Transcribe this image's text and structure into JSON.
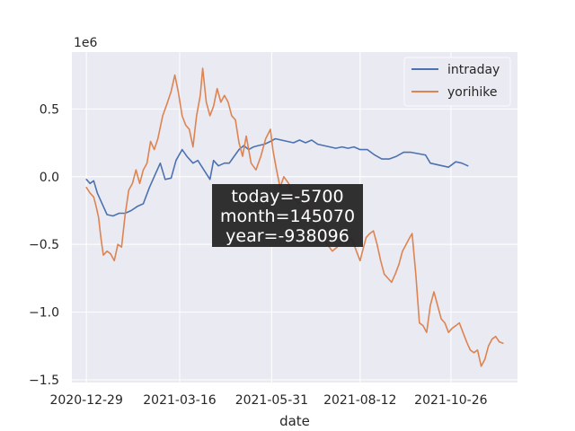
{
  "chart_data": {
    "type": "line",
    "xlabel": "date",
    "ylabel": "",
    "offset_label": "1e6",
    "x_tick_labels": [
      "2020-12-29",
      "2021-03-16",
      "2021-05-31",
      "2021-08-12",
      "2021-10-26"
    ],
    "x_tick_values": [
      "2020-12-29",
      "2021-03-16",
      "2021-05-31",
      "2021-08-12",
      "2021-10-26"
    ],
    "xlim": [
      "2020-12-17",
      "2021-12-20"
    ],
    "y_tick_labels": [
      "0.5",
      "0.0",
      "−0.5",
      "−1.0",
      "−1.5"
    ],
    "y_tick_values": [
      0.5,
      0.0,
      -0.5,
      -1.0,
      -1.5
    ],
    "ylim": [
      -1.52,
      0.92
    ],
    "y_unit_multiplier": 1000000,
    "grid": true,
    "legend_position": "top-right",
    "colors": {
      "background": "#eaeaf2",
      "grid": "#ffffff",
      "intraday": "#4c72b0",
      "yorihike": "#dd8452",
      "annotation_box": "#262626"
    },
    "annotation": [
      "today=-5700",
      "month=145070",
      "year=-938096"
    ],
    "series": [
      {
        "name": "intraday",
        "points": [
          [
            "2020-12-29",
            -0.02
          ],
          [
            "2021-01-01",
            -0.05
          ],
          [
            "2021-01-04",
            -0.03
          ],
          [
            "2021-01-07",
            -0.12
          ],
          [
            "2021-01-11",
            -0.2
          ],
          [
            "2021-01-15",
            -0.28
          ],
          [
            "2021-01-20",
            -0.29
          ],
          [
            "2021-01-25",
            -0.27
          ],
          [
            "2021-01-30",
            -0.27
          ],
          [
            "2021-02-04",
            -0.25
          ],
          [
            "2021-02-09",
            -0.22
          ],
          [
            "2021-02-14",
            -0.2
          ],
          [
            "2021-02-19",
            -0.08
          ],
          [
            "2021-02-24",
            0.02
          ],
          [
            "2021-02-28",
            0.1
          ],
          [
            "2021-03-04",
            -0.02
          ],
          [
            "2021-03-09",
            -0.01
          ],
          [
            "2021-03-13",
            0.12
          ],
          [
            "2021-03-18",
            0.2
          ],
          [
            "2021-03-22",
            0.15
          ],
          [
            "2021-03-27",
            0.1
          ],
          [
            "2021-03-31",
            0.12
          ],
          [
            "2021-04-05",
            0.05
          ],
          [
            "2021-04-10",
            -0.02
          ],
          [
            "2021-04-13",
            0.12
          ],
          [
            "2021-04-17",
            0.08
          ],
          [
            "2021-04-22",
            0.1
          ],
          [
            "2021-04-26",
            0.1
          ],
          [
            "2021-04-30",
            0.15
          ],
          [
            "2021-05-04",
            0.2
          ],
          [
            "2021-05-08",
            0.23
          ],
          [
            "2021-05-12",
            0.2
          ],
          [
            "2021-05-16",
            0.22
          ],
          [
            "2021-05-20",
            0.23
          ],
          [
            "2021-05-25",
            0.24
          ],
          [
            "2021-05-30",
            0.26
          ],
          [
            "2021-06-03",
            0.28
          ],
          [
            "2021-06-08",
            0.27
          ],
          [
            "2021-06-13",
            0.26
          ],
          [
            "2021-06-18",
            0.25
          ],
          [
            "2021-06-23",
            0.27
          ],
          [
            "2021-06-28",
            0.25
          ],
          [
            "2021-07-03",
            0.27
          ],
          [
            "2021-07-08",
            0.24
          ],
          [
            "2021-07-13",
            0.23
          ],
          [
            "2021-07-18",
            0.22
          ],
          [
            "2021-07-23",
            0.21
          ],
          [
            "2021-07-28",
            0.22
          ],
          [
            "2021-08-02",
            0.21
          ],
          [
            "2021-08-07",
            0.22
          ],
          [
            "2021-08-12",
            0.2
          ],
          [
            "2021-08-18",
            0.2
          ],
          [
            "2021-08-24",
            0.16
          ],
          [
            "2021-08-30",
            0.13
          ],
          [
            "2021-09-05",
            0.13
          ],
          [
            "2021-09-11",
            0.15
          ],
          [
            "2021-09-17",
            0.18
          ],
          [
            "2021-09-23",
            0.18
          ],
          [
            "2021-09-29",
            0.17
          ],
          [
            "2021-10-05",
            0.16
          ],
          [
            "2021-10-09",
            0.1
          ],
          [
            "2021-10-14",
            0.09
          ],
          [
            "2021-10-19",
            0.08
          ],
          [
            "2021-10-24",
            0.07
          ],
          [
            "2021-10-30",
            0.11
          ],
          [
            "2021-11-04",
            0.1
          ],
          [
            "2021-11-09",
            0.08
          ]
        ]
      },
      {
        "name": "yorihike",
        "points": [
          [
            "2020-12-29",
            -0.08
          ],
          [
            "2021-01-01",
            -0.12
          ],
          [
            "2021-01-04",
            -0.15
          ],
          [
            "2021-01-06",
            -0.22
          ],
          [
            "2021-01-08",
            -0.3
          ],
          [
            "2021-01-10",
            -0.45
          ],
          [
            "2021-01-12",
            -0.58
          ],
          [
            "2021-01-15",
            -0.55
          ],
          [
            "2021-01-18",
            -0.57
          ],
          [
            "2021-01-21",
            -0.62
          ],
          [
            "2021-01-24",
            -0.5
          ],
          [
            "2021-01-27",
            -0.52
          ],
          [
            "2021-01-30",
            -0.28
          ],
          [
            "2021-02-02",
            -0.1
          ],
          [
            "2021-02-05",
            -0.05
          ],
          [
            "2021-02-08",
            0.05
          ],
          [
            "2021-02-11",
            -0.05
          ],
          [
            "2021-02-14",
            0.05
          ],
          [
            "2021-02-17",
            0.1
          ],
          [
            "2021-02-20",
            0.26
          ],
          [
            "2021-02-23",
            0.2
          ],
          [
            "2021-02-26",
            0.28
          ],
          [
            "2021-03-02",
            0.45
          ],
          [
            "2021-03-06",
            0.55
          ],
          [
            "2021-03-09",
            0.63
          ],
          [
            "2021-03-12",
            0.75
          ],
          [
            "2021-03-15",
            0.62
          ],
          [
            "2021-03-18",
            0.45
          ],
          [
            "2021-03-21",
            0.38
          ],
          [
            "2021-03-24",
            0.35
          ],
          [
            "2021-03-27",
            0.22
          ],
          [
            "2021-03-30",
            0.45
          ],
          [
            "2021-04-02",
            0.6
          ],
          [
            "2021-04-04",
            0.8
          ],
          [
            "2021-04-07",
            0.55
          ],
          [
            "2021-04-10",
            0.45
          ],
          [
            "2021-04-13",
            0.52
          ],
          [
            "2021-04-16",
            0.65
          ],
          [
            "2021-04-19",
            0.55
          ],
          [
            "2021-04-22",
            0.6
          ],
          [
            "2021-04-25",
            0.55
          ],
          [
            "2021-04-28",
            0.45
          ],
          [
            "2021-05-01",
            0.42
          ],
          [
            "2021-05-04",
            0.25
          ],
          [
            "2021-05-07",
            0.15
          ],
          [
            "2021-05-10",
            0.3
          ],
          [
            "2021-05-14",
            0.1
          ],
          [
            "2021-05-18",
            0.05
          ],
          [
            "2021-05-22",
            0.15
          ],
          [
            "2021-05-26",
            0.28
          ],
          [
            "2021-05-30",
            0.35
          ],
          [
            "2021-06-01",
            0.2
          ],
          [
            "2021-06-04",
            0.05
          ],
          [
            "2021-06-07",
            -0.08
          ],
          [
            "2021-06-10",
            0.0
          ],
          [
            "2021-06-14",
            -0.05
          ],
          [
            "2021-06-18",
            -0.15
          ],
          [
            "2021-06-22",
            -0.2
          ],
          [
            "2021-06-26",
            -0.18
          ],
          [
            "2021-06-30",
            -0.22
          ],
          [
            "2021-07-04",
            -0.3
          ],
          [
            "2021-07-08",
            -0.38
          ],
          [
            "2021-07-12",
            -0.45
          ],
          [
            "2021-07-16",
            -0.5
          ],
          [
            "2021-07-20",
            -0.55
          ],
          [
            "2021-07-24",
            -0.52
          ],
          [
            "2021-07-28",
            -0.48
          ],
          [
            "2021-08-01",
            -0.5
          ],
          [
            "2021-08-05",
            -0.45
          ],
          [
            "2021-08-09",
            -0.55
          ],
          [
            "2021-08-12",
            -0.62
          ],
          [
            "2021-08-14",
            -0.55
          ],
          [
            "2021-08-17",
            -0.45
          ],
          [
            "2021-08-20",
            -0.42
          ],
          [
            "2021-08-23",
            -0.4
          ],
          [
            "2021-08-26",
            -0.5
          ],
          [
            "2021-08-29",
            -0.62
          ],
          [
            "2021-09-01",
            -0.72
          ],
          [
            "2021-09-04",
            -0.75
          ],
          [
            "2021-09-07",
            -0.78
          ],
          [
            "2021-09-10",
            -0.72
          ],
          [
            "2021-09-13",
            -0.65
          ],
          [
            "2021-09-16",
            -0.55
          ],
          [
            "2021-09-19",
            -0.5
          ],
          [
            "2021-09-22",
            -0.45
          ],
          [
            "2021-09-24",
            -0.42
          ],
          [
            "2021-09-27",
            -0.72
          ],
          [
            "2021-09-30",
            -1.08
          ],
          [
            "2021-10-03",
            -1.1
          ],
          [
            "2021-10-06",
            -1.15
          ],
          [
            "2021-10-09",
            -0.95
          ],
          [
            "2021-10-12",
            -0.85
          ],
          [
            "2021-10-15",
            -0.95
          ],
          [
            "2021-10-18",
            -1.05
          ],
          [
            "2021-10-21",
            -1.08
          ],
          [
            "2021-10-24",
            -1.15
          ],
          [
            "2021-10-27",
            -1.12
          ],
          [
            "2021-10-30",
            -1.1
          ],
          [
            "2021-11-02",
            -1.08
          ],
          [
            "2021-11-05",
            -1.15
          ],
          [
            "2021-11-08",
            -1.22
          ],
          [
            "2021-11-11",
            -1.28
          ],
          [
            "2021-11-14",
            -1.3
          ],
          [
            "2021-11-17",
            -1.28
          ],
          [
            "2021-11-20",
            -1.4
          ],
          [
            "2021-11-23",
            -1.35
          ],
          [
            "2021-11-26",
            -1.25
          ],
          [
            "2021-11-29",
            -1.2
          ],
          [
            "2021-12-02",
            -1.18
          ],
          [
            "2021-12-05",
            -1.22
          ],
          [
            "2021-12-08",
            -1.23
          ]
        ]
      }
    ]
  }
}
